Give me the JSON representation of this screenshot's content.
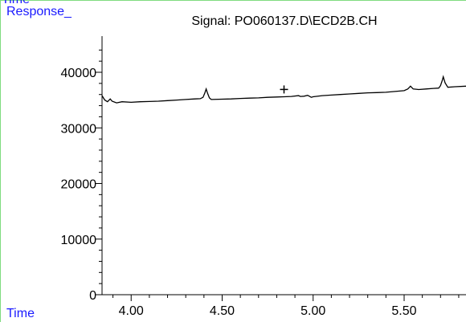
{
  "labels": {
    "top_time": "Time",
    "response": "Response_",
    "bottom_time": "Time"
  },
  "colors": {
    "label_blue": "#1a1aff",
    "frame_green": "#7fdc7f",
    "trace": "#000000"
  },
  "chart_data": {
    "type": "line",
    "title": "Signal: PO060137.D\\ECD2B.CH",
    "xlabel": "Time",
    "ylabel": "Response_",
    "xlim": [
      3.84,
      5.84
    ],
    "ylim": [
      0,
      46500
    ],
    "x_ticks": [
      "4.00",
      "4.50",
      "5.00",
      "5.50"
    ],
    "y_ticks": [
      "0",
      "10000",
      "20000",
      "30000",
      "40000"
    ],
    "marker": {
      "symbol": "+",
      "x": 4.84,
      "y": 35900
    },
    "series": [
      {
        "values": [
          [
            3.84,
            35800
          ],
          [
            3.855,
            35000
          ],
          [
            3.87,
            34700
          ],
          [
            3.885,
            35200
          ],
          [
            3.895,
            34800
          ],
          [
            3.92,
            34500
          ],
          [
            3.95,
            34700
          ],
          [
            4.0,
            34600
          ],
          [
            4.05,
            34700
          ],
          [
            4.1,
            34750
          ],
          [
            4.15,
            34800
          ],
          [
            4.2,
            34900
          ],
          [
            4.25,
            35000
          ],
          [
            4.3,
            35100
          ],
          [
            4.35,
            35200
          ],
          [
            4.38,
            35250
          ],
          [
            4.395,
            35500
          ],
          [
            4.405,
            36300
          ],
          [
            4.412,
            37000
          ],
          [
            4.42,
            36200
          ],
          [
            4.43,
            35400
          ],
          [
            4.44,
            35100
          ],
          [
            4.48,
            35150
          ],
          [
            4.55,
            35200
          ],
          [
            4.6,
            35300
          ],
          [
            4.65,
            35350
          ],
          [
            4.7,
            35400
          ],
          [
            4.75,
            35500
          ],
          [
            4.8,
            35550
          ],
          [
            4.84,
            35600
          ],
          [
            4.88,
            35650
          ],
          [
            4.92,
            35800
          ],
          [
            4.93,
            35650
          ],
          [
            4.95,
            35700
          ],
          [
            4.97,
            35850
          ],
          [
            4.99,
            35500
          ],
          [
            5.0,
            35600
          ],
          [
            5.05,
            35800
          ],
          [
            5.1,
            35900
          ],
          [
            5.15,
            36000
          ],
          [
            5.2,
            36100
          ],
          [
            5.25,
            36200
          ],
          [
            5.3,
            36300
          ],
          [
            5.35,
            36350
          ],
          [
            5.4,
            36400
          ],
          [
            5.45,
            36550
          ],
          [
            5.5,
            36700
          ],
          [
            5.52,
            37000
          ],
          [
            5.535,
            37500
          ],
          [
            5.55,
            37000
          ],
          [
            5.58,
            36900
          ],
          [
            5.62,
            37000
          ],
          [
            5.66,
            37100
          ],
          [
            5.69,
            37150
          ],
          [
            5.7,
            37600
          ],
          [
            5.71,
            38600
          ],
          [
            5.715,
            39200
          ],
          [
            5.725,
            38100
          ],
          [
            5.74,
            37300
          ],
          [
            5.78,
            37400
          ],
          [
            5.84,
            37500
          ]
        ]
      }
    ]
  }
}
